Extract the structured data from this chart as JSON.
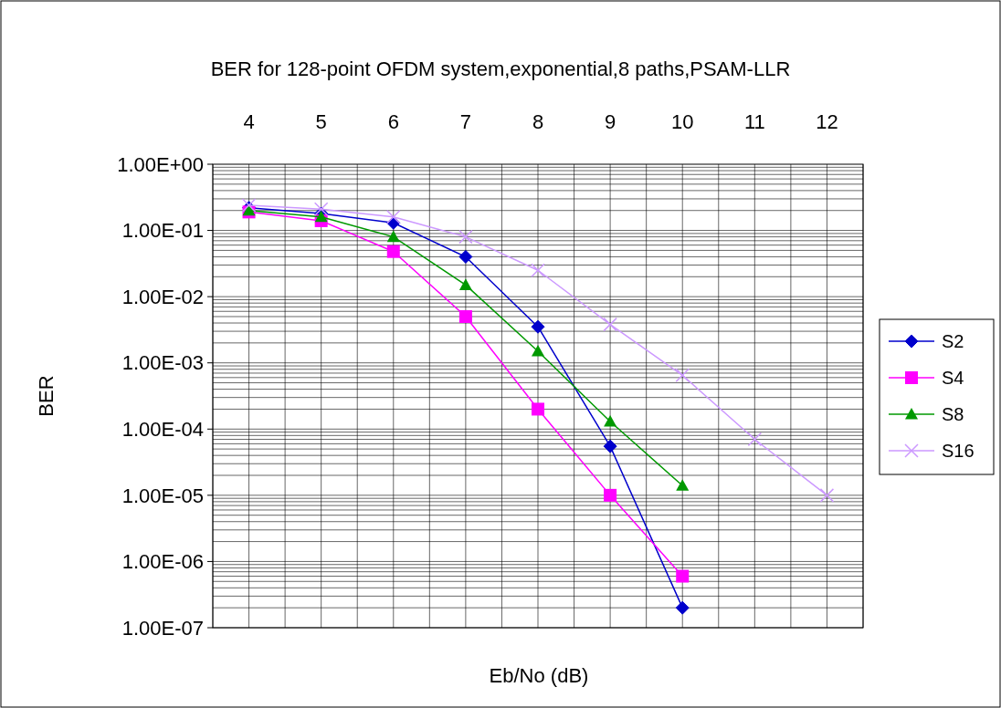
{
  "chart_data": {
    "type": "line",
    "title": "BER for 128-point OFDM system,exponential,8 paths,PSAM-LLR",
    "xlabel": "Eb/No (dB)",
    "ylabel": "BER",
    "x": [
      4,
      5,
      6,
      7,
      8,
      9,
      10,
      11,
      12
    ],
    "xlim": [
      3.5,
      12.5
    ],
    "xticks": [
      4,
      5,
      6,
      7,
      8,
      9,
      10,
      11,
      12
    ],
    "ylim": [
      1e-07,
      1
    ],
    "yticks": [
      {
        "value": 1e-07,
        "label": "1.00E-07"
      },
      {
        "value": 1e-06,
        "label": "1.00E-06"
      },
      {
        "value": 1e-05,
        "label": "1.00E-05"
      },
      {
        "value": 0.0001,
        "label": "1.00E-04"
      },
      {
        "value": 0.001,
        "label": "1.00E-03"
      },
      {
        "value": 0.01,
        "label": "1.00E-02"
      },
      {
        "value": 0.1,
        "label": "1.00E-01"
      },
      {
        "value": 1,
        "label": "1.00E+00"
      }
    ],
    "log": "y",
    "grid": true,
    "legend": "right",
    "line_style": "solid",
    "series": [
      {
        "name": "S2",
        "color": "#0000cc",
        "marker": "diamond",
        "values": [
          0.22,
          0.18,
          0.13,
          0.04,
          0.0035,
          5.5e-05,
          2e-07,
          null,
          null
        ]
      },
      {
        "name": "S4",
        "color": "#ff00ff",
        "marker": "square",
        "values": [
          0.19,
          0.14,
          0.048,
          0.005,
          0.0002,
          1e-05,
          6e-07,
          null,
          null
        ]
      },
      {
        "name": "S8",
        "color": "#009900",
        "marker": "triangle",
        "values": [
          0.2,
          0.16,
          0.08,
          0.015,
          0.0015,
          0.00013,
          1.4e-05,
          null,
          null
        ]
      },
      {
        "name": "S16",
        "color": "#cc99ff",
        "marker": "cross",
        "values": [
          0.24,
          0.21,
          0.16,
          0.08,
          0.025,
          0.0038,
          0.00065,
          7e-05,
          1e-05
        ]
      }
    ]
  }
}
